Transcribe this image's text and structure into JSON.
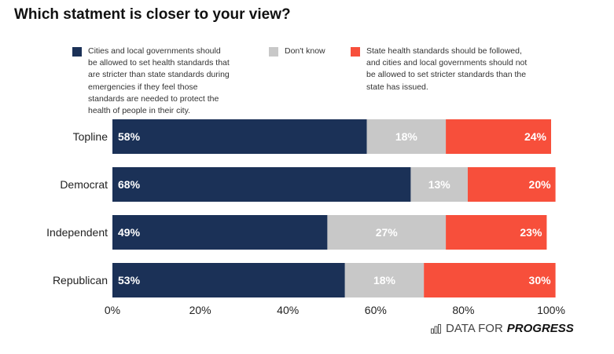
{
  "chart_data": {
    "type": "bar",
    "orientation": "horizontal-stacked",
    "title": "Which statment is closer to your view?",
    "categories": [
      "Topline",
      "Democrat",
      "Independent",
      "Republican"
    ],
    "series": [
      {
        "name": "Cities and local governments should be allowed to set health standards that are stricter than state standards during emergencies if they feel those standards are needed to protect the health of people in their city.",
        "values": [
          58,
          68,
          49,
          53
        ],
        "color": "#1b3157"
      },
      {
        "name": "Don't know",
        "values": [
          18,
          13,
          27,
          18
        ],
        "color": "#c8c8c8"
      },
      {
        "name": "State health standards should be followed, and cities and local governments should not be allowed to set stricter standards than the state has issued.",
        "values": [
          24,
          20,
          23,
          30
        ],
        "color": "#f74f3b"
      }
    ],
    "xticks": [
      "0%",
      "20%",
      "40%",
      "60%",
      "80%",
      "100%"
    ],
    "xlim": [
      0,
      100
    ],
    "legend": "top"
  },
  "brand": {
    "prefix": "DATA FOR",
    "name": "PROGRESS"
  }
}
